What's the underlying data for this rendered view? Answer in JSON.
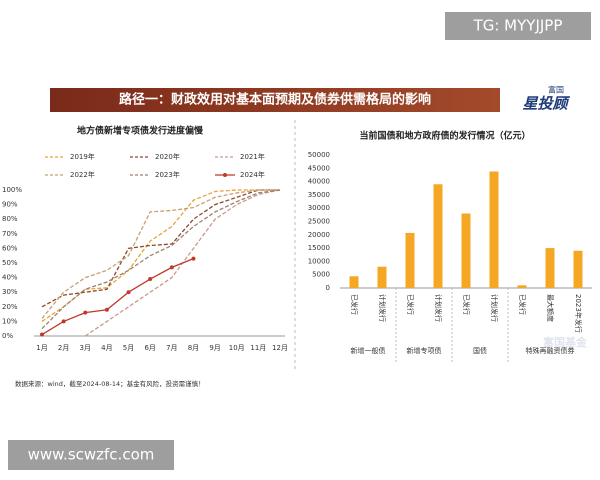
{
  "watermark_top": "TG: MYYJJPP",
  "banner_title": "路径一：财政效用对基本面预期及债券供需格局的影响",
  "logo": {
    "small": "富国",
    "large": "星投顾"
  },
  "faint_watermark": "富国基金",
  "source_note": "数据来源：wind，截至2024-08-14；基金有风险，投资需谨慎！",
  "watermark_bottom": "www.scwzfc.com",
  "chart_data": [
    {
      "type": "line",
      "title": "地方债新增专项债发行进度偏慢",
      "categories": [
        "1月",
        "2月",
        "3月",
        "4月",
        "5月",
        "6月",
        "7月",
        "8月",
        "9月",
        "10月",
        "11月",
        "12月"
      ],
      "series": [
        {
          "name": "2019年",
          "color": "#e8a23a",
          "values": [
            10,
            20,
            32,
            33,
            45,
            65,
            75,
            93,
            99,
            100,
            100,
            100
          ]
        },
        {
          "name": "2020年",
          "color": "#8b4a2a",
          "values": [
            20,
            28,
            30,
            32,
            60,
            62,
            63,
            80,
            90,
            95,
            100,
            100
          ]
        },
        {
          "name": "2021年",
          "color": "#c99a8a",
          "values": [
            null,
            null,
            0,
            10,
            20,
            30,
            40,
            60,
            80,
            90,
            97,
            100
          ]
        },
        {
          "name": "2022年",
          "color": "#c8a070",
          "values": [
            12,
            30,
            40,
            45,
            55,
            85,
            86,
            88,
            95,
            98,
            100,
            100
          ]
        },
        {
          "name": "2023年",
          "color": "#9a8070",
          "values": [
            5,
            20,
            32,
            37,
            45,
            55,
            62,
            75,
            85,
            92,
            98,
            100
          ]
        },
        {
          "name": "2024年",
          "color": "#c0392b",
          "markers": true,
          "values": [
            1,
            10,
            16,
            18,
            30,
            39,
            47,
            53,
            null,
            null,
            null,
            null
          ]
        }
      ],
      "ylim": [
        0,
        100
      ],
      "yticks": [
        {
          "value": 0,
          "label": "0%"
        },
        {
          "value": 10,
          "label": "10%"
        },
        {
          "value": 20,
          "label": "20%"
        },
        {
          "value": 30,
          "label": "30%"
        },
        {
          "value": 40,
          "label": "40%"
        },
        {
          "value": 50,
          "label": "50%"
        },
        {
          "value": 60,
          "label": "60%"
        },
        {
          "value": 70,
          "label": "70%"
        },
        {
          "value": 80,
          "label": "80%"
        },
        {
          "value": 90,
          "label": "90%"
        },
        {
          "value": 100,
          "label": "100%"
        }
      ]
    },
    {
      "type": "bar",
      "title": "当前国债和地方政府债的发行情况（亿元）",
      "color": "#f5a623",
      "groups": [
        {
          "name": "新增一般债",
          "categories": [
            "已发行",
            "计划发行"
          ],
          "values": [
            4400,
            8000
          ]
        },
        {
          "name": "新增专项债",
          "categories": [
            "已发行",
            "计划发行"
          ],
          "values": [
            20700,
            39000
          ]
        },
        {
          "name": "国债",
          "categories": [
            "已发行",
            "计划发行"
          ],
          "values": [
            28000,
            43800
          ]
        },
        {
          "name": "特殊再融资债券",
          "categories": [
            "已发行",
            "最大额度",
            "2023年发行"
          ],
          "values": [
            1000,
            15000,
            14000
          ]
        }
      ],
      "ylim": [
        0,
        50000
      ],
      "yticks": [
        0,
        5000,
        10000,
        15000,
        20000,
        25000,
        30000,
        35000,
        40000,
        45000,
        50000
      ]
    }
  ]
}
